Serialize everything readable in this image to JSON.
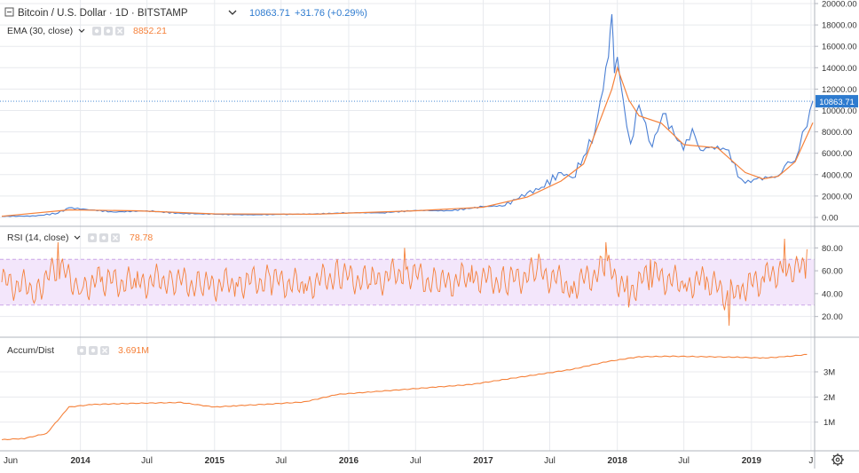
{
  "header": {
    "symbol_title": "Bitcoin / U.S. Dollar · 1D · BITSTAMP",
    "price": "10863.71",
    "change": "+31.76 (+0.29%)",
    "ema_label": "EMA (30, close)",
    "ema_value": "8852.21",
    "rsi_label": "RSI (14, close)",
    "rsi_value": "78.78",
    "ad_label": "Accum/Dist",
    "ad_value": "3.691M"
  },
  "colors": {
    "price_line": "#4a7fd4",
    "ema_line": "#f5813a",
    "rsi_line": "#f5813a",
    "rsi_band": "#f3e6fb",
    "ad_line": "#f5813a",
    "accent_blue": "#2e7bcf",
    "grid": "#e8eaee"
  },
  "chart_data": [
    {
      "type": "line",
      "title": "Bitcoin / U.S. Dollar · 1D · BITSTAMP",
      "series": [
        {
          "name": "Bitcoin / U.S. Dollar",
          "x": [
            "2013-06",
            "2013-09",
            "2013-11",
            "2013-12",
            "2014-02",
            "2014-04",
            "2014-07",
            "2014-10",
            "2015-01",
            "2015-04",
            "2015-07",
            "2015-10",
            "2016-01",
            "2016-04",
            "2016-07",
            "2016-10",
            "2017-01",
            "2017-03",
            "2017-05",
            "2017-06",
            "2017-08",
            "2017-09",
            "2017-10",
            "2017-11",
            "2017-12-08",
            "2017-12-17",
            "2017-12-24",
            "2018-01-01",
            "2018-01-17",
            "2018-02-06",
            "2018-03-01",
            "2018-04-06",
            "2018-05-05",
            "2018-06-30",
            "2018-07-24",
            "2018-08-15",
            "2018-09-15",
            "2018-10-31",
            "2018-11-25",
            "2018-12-15",
            "2019-01-15",
            "2019-02-15",
            "2019-03-15",
            "2019-04-10",
            "2019-04-30",
            "2019-05-20",
            "2019-06-01",
            "2019-06-17"
          ],
          "y": [
            110,
            130,
            400,
            900,
            700,
            500,
            620,
            370,
            300,
            240,
            280,
            320,
            430,
            430,
            650,
            620,
            1000,
            1100,
            2300,
            2600,
            4200,
            3700,
            5700,
            8000,
            15000,
            19000,
            13500,
            15000,
            11000,
            6900,
            10500,
            6600,
            9700,
            6300,
            8300,
            6300,
            6600,
            6300,
            3800,
            3200,
            3600,
            3700,
            3900,
            5200,
            5300,
            8000,
            8500,
            10863.71
          ]
        },
        {
          "name": "EMA (30, close)",
          "x": [
            "2013-06",
            "2013-12",
            "2014-06",
            "2015-01",
            "2015-10",
            "2016-07",
            "2017-01",
            "2017-05",
            "2017-08",
            "2017-10",
            "2017-12-17",
            "2018-01-01",
            "2018-02-01",
            "2018-03-01",
            "2018-05-01",
            "2018-07-01",
            "2018-10-01",
            "2018-12-15",
            "2019-02-01",
            "2019-03-15",
            "2019-04-30",
            "2019-06-17"
          ],
          "y": [
            110,
            700,
            620,
            330,
            300,
            620,
            950,
            1900,
            3400,
            5000,
            12000,
            14000,
            11000,
            9500,
            8800,
            6800,
            6500,
            4200,
            3600,
            3850,
            5200,
            8852.21
          ]
        }
      ],
      "ylim": [
        -500,
        20000
      ],
      "yticks": [
        "0.00",
        "2000.00",
        "4000.00",
        "6000.00",
        "8000.00",
        "10000.00",
        "12000.00",
        "14000.00",
        "16000.00",
        "18000.00",
        "20000.00"
      ],
      "last_price_label": "10863.71"
    },
    {
      "type": "line",
      "title": "RSI (14, close)",
      "series": [
        {
          "name": "RSI (14, close)",
          "x": [
            "2013-06",
            "2013-09",
            "2013-11",
            "2014-01",
            "2014-03",
            "2014-06",
            "2014-09",
            "2014-12",
            "2015-03",
            "2015-06",
            "2015-09",
            "2015-12",
            "2016-03",
            "2016-06",
            "2016-09",
            "2016-12",
            "2017-03",
            "2017-06",
            "2017-09",
            "2017-12",
            "2018-02",
            "2018-04",
            "2018-07",
            "2018-09",
            "2018-11",
            "2018-12",
            "2019-02",
            "2019-04",
            "2019-06"
          ],
          "y": [
            50,
            35,
            85,
            40,
            55,
            45,
            60,
            38,
            50,
            55,
            40,
            70,
            48,
            80,
            42,
            65,
            50,
            75,
            40,
            85,
            28,
            70,
            45,
            55,
            12,
            35,
            55,
            88,
            78.78
          ]
        }
      ],
      "band": [
        30,
        70
      ],
      "ylim": [
        5,
        95
      ],
      "yticks": [
        "20.00",
        "40.00",
        "60.00",
        "80.00"
      ]
    },
    {
      "type": "area",
      "title": "Accum/Dist",
      "series": [
        {
          "name": "Accum/Dist",
          "x": [
            "2013-06",
            "2013-08",
            "2013-10",
            "2013-12",
            "2014-02",
            "2014-06",
            "2014-10",
            "2015-01",
            "2015-03",
            "2015-06",
            "2015-09",
            "2015-12",
            "2016-03",
            "2016-06",
            "2016-09",
            "2016-12",
            "2017-03",
            "2017-06",
            "2017-09",
            "2017-12",
            "2018-03",
            "2018-06",
            "2018-09",
            "2018-12",
            "2019-02",
            "2019-04",
            "2019-06"
          ],
          "y": [
            0.3,
            0.35,
            0.55,
            1.6,
            1.7,
            1.75,
            1.78,
            1.6,
            1.65,
            1.72,
            1.8,
            2.1,
            2.2,
            2.3,
            2.4,
            2.5,
            2.7,
            2.9,
            3.1,
            3.4,
            3.6,
            3.62,
            3.6,
            3.58,
            3.55,
            3.6,
            3.691
          ]
        }
      ],
      "ylim": [
        0,
        4.2
      ],
      "yticks": [
        "1M",
        "2M",
        "3M"
      ]
    }
  ],
  "x_axis": {
    "labels": [
      "Jun",
      "2014",
      "Jul",
      "2015",
      "Jul",
      "2016",
      "Jul",
      "2017",
      "Jul",
      "2018",
      "Jul",
      "2019",
      "J"
    ]
  },
  "icons": [
    "collapse-icon",
    "eye-icon",
    "gear-icon",
    "close-icon",
    "settings-gear-icon",
    "chevron-down-icon"
  ]
}
